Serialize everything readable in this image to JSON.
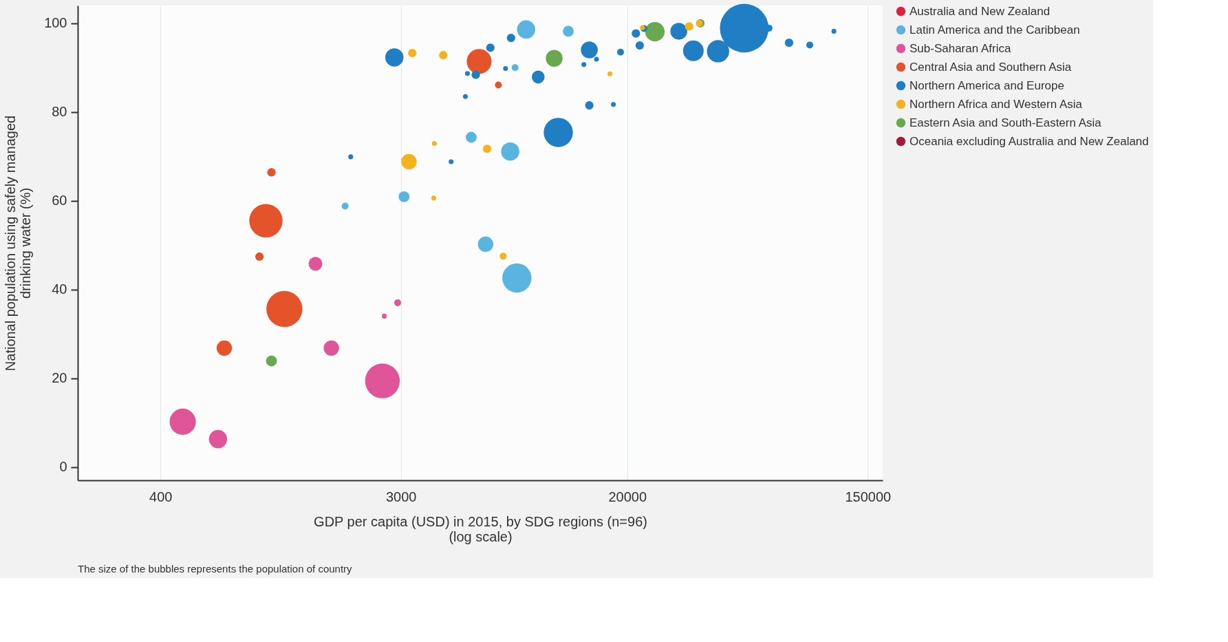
{
  "chart_data": {
    "type": "bubble",
    "xlabel": "GDP per capita (USD) in 2015, by SDG regions (n=96)\n(log scale)",
    "ylabel": "National population using safely managed\ndrinking water (%)",
    "annotations": [
      "The size of the bubbles represents the population of country"
    ],
    "log": "x",
    "xlim": [
      200,
      170000
    ],
    "xticks": [
      400,
      3000,
      20000,
      150000
    ],
    "ylim": [
      -3,
      104
    ],
    "yticks": [
      0,
      20,
      40,
      60,
      80,
      100
    ],
    "grid": "x",
    "legend": "right",
    "series": [
      {
        "name": "Australia and New Zealand",
        "color": "#e0203c"
      },
      {
        "name": "Latin America and the Caribbean",
        "color": "#5ab4e0",
        "x": [
          1880,
          3080,
          5410,
          7500,
          6100,
          7930,
          8570,
          12200,
          7810
        ],
        "values": [
          58.8,
          60.9,
          74.3,
          71.1,
          50.2,
          42.6,
          98.6,
          98.2,
          90
        ],
        "sizes": [
          0.02,
          0.05,
          0.05,
          0.14,
          0.1,
          0.36,
          0.14,
          0.05,
          0.02
        ]
      },
      {
        "name": "Sub-Saharan Africa",
        "color": "#e0559a",
        "x": [
          482,
          648,
          1466,
          1675,
          2570,
          2920,
          2610
        ],
        "values": [
          10.2,
          6.3,
          45.8,
          26.8,
          19.4,
          37,
          34
        ],
        "sizes": [
          0.29,
          0.14,
          0.08,
          0.1,
          0.51,
          0.02,
          0.01
        ]
      },
      {
        "name": "Central Asia and Southern Asia",
        "color": "#e5532a",
        "x": [
          968,
          1130,
          683,
          917,
          1014,
          5780,
          6790
        ],
        "values": [
          55.5,
          35.6,
          26.8,
          47.4,
          66.4,
          91.4,
          86.1
        ],
        "sizes": [
          0.47,
          0.55,
          0.1,
          0.03,
          0.03,
          0.26,
          0.02
        ]
      },
      {
        "name": "Northern America and Europe",
        "color": "#1f7ec4",
        "x": [
          2840,
          1970,
          4570,
          5150,
          5240,
          5620,
          6350,
          7210,
          7550,
          9480,
          11220,
          13900,
          14550,
          15450,
          14550,
          17800,
          18900,
          21500,
          22200,
          23000,
          30800,
          34800,
          42800,
          53300,
          65600,
          77600,
          92300,
          113000
        ],
        "values": [
          92.3,
          69.9,
          68.8,
          83.5,
          88.7,
          88.4,
          94.5,
          89.8,
          96.7,
          87.9,
          75.4,
          90.7,
          94,
          91.9,
          81.5,
          81.7,
          93.5,
          97.7,
          95,
          98.8,
          98.2,
          93.8,
          93.7,
          98.9,
          98.9,
          95.6,
          95.1,
          98.2
        ],
        "sizes": [
          0.14,
          0.01,
          0.01,
          0.01,
          0.01,
          0.03,
          0.03,
          0.01,
          0.03,
          0.07,
          0.36,
          0.01,
          0.12,
          0.01,
          0.03,
          0.01,
          0.02,
          0.03,
          0.03,
          0.02,
          0.12,
          0.18,
          0.21,
          1,
          0.02,
          0.03,
          0.02,
          0.01
        ]
      },
      {
        "name": "Northern Africa and Western Asia",
        "color": "#f5b31b",
        "x": [
          3300,
          4280,
          3210,
          3970,
          3950,
          6180,
          7070,
          17300,
          22700,
          33600,
          36600
        ],
        "values": [
          93.3,
          92.8,
          68.8,
          72.9,
          60.6,
          71.7,
          47.5,
          88.6,
          99,
          99.3,
          100
        ],
        "sizes": [
          0.03,
          0.03,
          0.1,
          0.01,
          0.01,
          0.03,
          0.02,
          0.01,
          0.01,
          0.03,
          0.02
        ]
      },
      {
        "name": "Eastern Asia and South-Eastern Asia",
        "color": "#6aa84f",
        "x": [
          1014,
          10840,
          25200,
          36900
        ],
        "values": [
          23.9,
          92.1,
          98.1,
          100
        ],
        "sizes": [
          0.05,
          0.12,
          0.16,
          0.03
        ]
      },
      {
        "name": "Oceania excluding Australia and New Zealand",
        "color": "#a8183a"
      }
    ]
  }
}
